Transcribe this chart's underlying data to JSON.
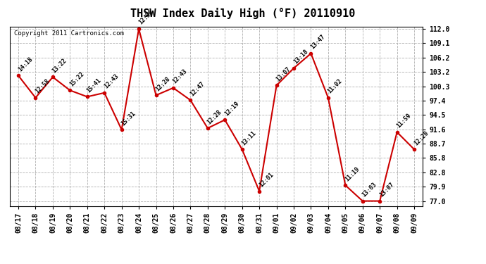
{
  "title": "THSW Index Daily High (°F) 20110910",
  "copyright": "Copyright 2011 Cartronics.com",
  "background_color": "#ffffff",
  "plot_bg_color": "#ffffff",
  "grid_color": "#b0b0b0",
  "line_color": "#cc0000",
  "marker_color": "#cc0000",
  "dates": [
    "08/17",
    "08/18",
    "08/19",
    "08/20",
    "08/21",
    "08/22",
    "08/23",
    "08/24",
    "08/25",
    "08/26",
    "08/27",
    "08/28",
    "08/29",
    "08/30",
    "08/31",
    "09/01",
    "09/02",
    "09/03",
    "09/04",
    "09/05",
    "09/06",
    "09/07",
    "09/08",
    "09/09"
  ],
  "values": [
    102.5,
    98.0,
    102.2,
    99.5,
    98.2,
    99.0,
    91.5,
    112.0,
    98.5,
    100.0,
    97.5,
    91.8,
    93.5,
    87.5,
    79.0,
    100.5,
    104.0,
    107.0,
    98.0,
    80.2,
    77.0,
    77.0,
    91.0,
    87.5
  ],
  "times": [
    "14:18",
    "12:58",
    "13:22",
    "15:22",
    "15:41",
    "12:43",
    "15:31",
    "12:56",
    "12:28",
    "12:43",
    "12:47",
    "12:28",
    "12:19",
    "13:11",
    "12:01",
    "13:07",
    "13:18",
    "13:47",
    "11:02",
    "11:19",
    "13:03",
    "13:07",
    "11:59",
    "12:20"
  ],
  "ylim_min": 77.0,
  "ylim_max": 112.0,
  "yticks": [
    77.0,
    79.9,
    82.8,
    85.8,
    88.7,
    91.6,
    94.5,
    97.4,
    100.3,
    103.2,
    106.2,
    109.1,
    112.0
  ]
}
